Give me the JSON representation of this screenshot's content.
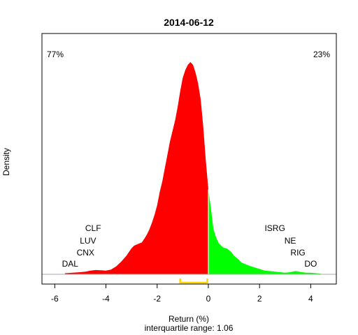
{
  "chart_data": {
    "type": "area",
    "title": "2014-06-12",
    "xlabel": "Return (%)",
    "ylabel": "Density",
    "subtitle": "interquartile range: 1.06",
    "xlim": [
      -6.5,
      5.0
    ],
    "ylim": [
      0,
      0.85
    ],
    "xticks": [
      -6,
      -4,
      -2,
      0,
      2,
      4
    ],
    "xtick_labels": [
      "-6",
      "-4",
      "-2",
      "0",
      "2",
      "4"
    ],
    "grid": false,
    "series": [
      {
        "color": "#ff0000",
        "x": [
          -5.6,
          -5.3,
          -5.0,
          -4.8,
          -4.6,
          -4.4,
          -4.2,
          -4.0,
          -3.8,
          -3.6,
          -3.4,
          -3.2,
          -3.0,
          -2.9,
          -2.8,
          -2.7,
          -2.6,
          -2.5,
          -2.4,
          -2.3,
          -2.2,
          -2.1,
          -2.0,
          -1.9,
          -1.8,
          -1.7,
          -1.6,
          -1.5,
          -1.4,
          -1.3,
          -1.2,
          -1.1,
          -1.0,
          -0.9,
          -0.8,
          -0.7,
          -0.6,
          -0.5,
          -0.4,
          -0.3,
          -0.2,
          -0.1,
          0.0
        ],
        "y": [
          0.004,
          0.006,
          0.008,
          0.01,
          0.014,
          0.016,
          0.015,
          0.014,
          0.018,
          0.03,
          0.048,
          0.07,
          0.098,
          0.108,
          0.112,
          0.116,
          0.12,
          0.134,
          0.15,
          0.17,
          0.195,
          0.225,
          0.26,
          0.31,
          0.35,
          0.4,
          0.45,
          0.5,
          0.54,
          0.58,
          0.63,
          0.69,
          0.74,
          0.77,
          0.79,
          0.8,
          0.79,
          0.76,
          0.72,
          0.66,
          0.56,
          0.43,
          0.32
        ]
      },
      {
        "color": "#00ff00",
        "x": [
          0.0,
          0.1,
          0.2,
          0.3,
          0.4,
          0.5,
          0.6,
          0.7,
          0.8,
          0.9,
          1.0,
          1.1,
          1.2,
          1.3,
          1.4,
          1.5,
          1.6,
          1.8,
          2.0,
          2.2,
          2.4,
          2.6,
          2.8,
          3.0,
          3.2,
          3.4,
          3.6,
          3.8,
          4.0,
          4.2,
          4.4
        ],
        "y": [
          0.32,
          0.25,
          0.17,
          0.14,
          0.118,
          0.108,
          0.1,
          0.098,
          0.092,
          0.084,
          0.07,
          0.062,
          0.054,
          0.044,
          0.04,
          0.036,
          0.032,
          0.026,
          0.02,
          0.014,
          0.012,
          0.01,
          0.008,
          0.006,
          0.008,
          0.012,
          0.009,
          0.006,
          0.006,
          0.004,
          0.002
        ]
      }
    ],
    "annotations": {
      "left_pct": {
        "text": "77%",
        "color": "#ff0000"
      },
      "right_pct": {
        "text": "23%",
        "color": "#008000"
      },
      "left_tickers": [
        {
          "text": "CLF",
          "x": -4.5
        },
        {
          "text": "LUV",
          "x": -4.7
        },
        {
          "text": "CNX",
          "x": -4.8
        },
        {
          "text": "DAL",
          "x": -5.4
        }
      ],
      "right_tickers": [
        {
          "text": "ISRG",
          "x": 2.6
        },
        {
          "text": "NE",
          "x": 3.2
        },
        {
          "text": "RIG",
          "x": 3.5
        },
        {
          "text": "DO",
          "x": 4.0
        }
      ]
    },
    "interquartile_range": {
      "value": 1.06,
      "q1": -1.1,
      "q3": -0.04,
      "color": "#ffd700"
    }
  }
}
